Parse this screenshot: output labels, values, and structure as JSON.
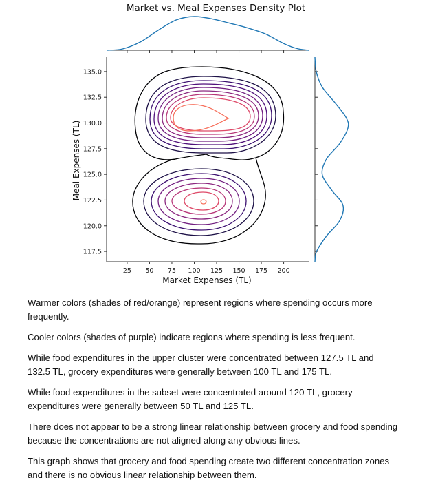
{
  "chart_data": {
    "type": "contour",
    "title": "Market vs. Meal Expenses Density Plot",
    "xlabel": "Market Expenses (TL)",
    "ylabel": "Meal Expenses (TL)",
    "x_ticks": [
      25,
      50,
      75,
      100,
      125,
      150,
      175,
      200
    ],
    "y_ticks": [
      117.5,
      120.0,
      122.5,
      125.0,
      127.5,
      130.0,
      132.5,
      135.0
    ],
    "xlim": [
      2,
      228
    ],
    "ylim": [
      116.5,
      136.4
    ],
    "colormap": "magma",
    "clusters": [
      {
        "center_x": 130,
        "center_y": 130.0,
        "x_range": [
          100,
          175
        ],
        "y_range": [
          127.5,
          132.5
        ],
        "peak_density": "high"
      },
      {
        "center_x": 110,
        "center_y": 122.0,
        "x_range": [
          50,
          125
        ],
        "y_range": [
          120.0,
          124.5
        ],
        "peak_density": "high"
      }
    ],
    "marginal_x": {
      "x": [
        2,
        20,
        40,
        60,
        80,
        100,
        120,
        140,
        160,
        180,
        200,
        215,
        228
      ],
      "density": [
        0.0,
        0.04,
        0.25,
        0.6,
        0.9,
        1.0,
        0.93,
        0.8,
        0.66,
        0.48,
        0.2,
        0.05,
        0.0
      ]
    },
    "marginal_y": {
      "y": [
        116.5,
        117.5,
        119,
        120.5,
        122,
        123.5,
        125,
        126.5,
        128,
        129.5,
        130.5,
        132,
        133.5,
        135,
        136.4
      ],
      "density": [
        0.0,
        0.05,
        0.35,
        0.75,
        0.85,
        0.5,
        0.22,
        0.35,
        0.75,
        1.0,
        0.95,
        0.6,
        0.22,
        0.04,
        0.0
      ]
    }
  },
  "notes": [
    "Warmer colors (shades of red/orange) represent regions where spending occurs more frequently.",
    "Cooler colors (shades of purple) indicate regions where spending is less frequent.",
    "While food expenditures in the upper cluster were concentrated between 127.5 TL and 132.5 TL, grocery expenditures were generally between 100 TL and 175 TL.",
    "While food expenditures in the subset were concentrated around 120 TL, grocery expenditures were generally between 50 TL and 125 TL.",
    "There does not appear to be a strong linear relationship between grocery and food spending because the concentrations are not aligned along any obvious lines.",
    "This graph shows that grocery and food spending create two different concentration zones and there is no obvious linear relationship between them."
  ]
}
